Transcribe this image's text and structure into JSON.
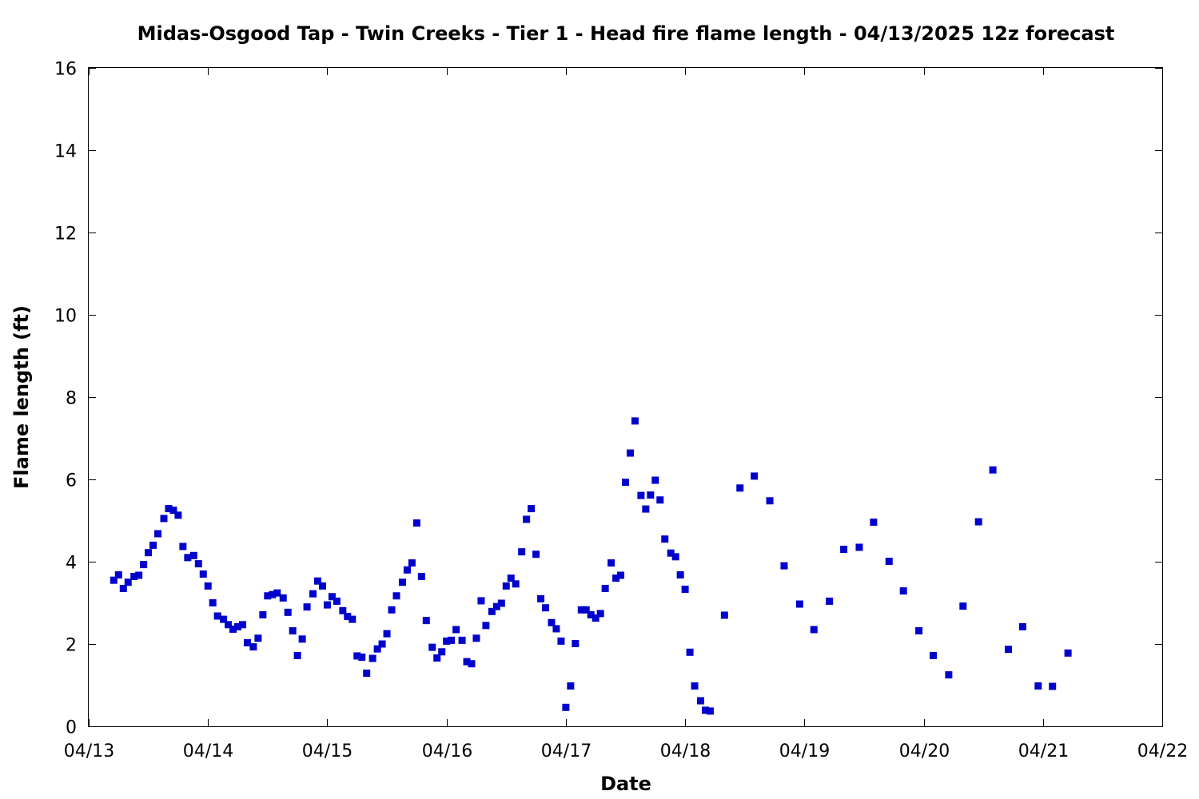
{
  "chart_data": {
    "type": "scatter",
    "title": "Midas-Osgood Tap - Twin Creeks - Tier 1 - Head fire flame length - 04/13/2025 12z forecast",
    "xlabel": "Date",
    "ylabel": "Flame length (ft)",
    "x_ticks": [
      "04/13",
      "04/14",
      "04/15",
      "04/16",
      "04/17",
      "04/18",
      "04/19",
      "04/20",
      "04/21",
      "04/22"
    ],
    "y_ticks": [
      "0",
      "2",
      "4",
      "6",
      "8",
      "10",
      "12",
      "14",
      "16"
    ],
    "xlim": [
      "04/13 00z",
      "04/22 00z"
    ],
    "ylim": [
      0,
      16
    ],
    "grid": false,
    "legend": "none",
    "marker": "square",
    "colors": {
      "points": "#0000cc",
      "frame": "#000000",
      "background": "#ffffff"
    },
    "series": [
      {
        "x_unit": "days since 04/13 00z",
        "points": [
          [
            0.21,
            3.55
          ],
          [
            0.25,
            3.68
          ],
          [
            0.29,
            3.35
          ],
          [
            0.33,
            3.5
          ],
          [
            0.38,
            3.64
          ],
          [
            0.42,
            3.67
          ],
          [
            0.46,
            3.93
          ],
          [
            0.5,
            4.22
          ],
          [
            0.54,
            4.4
          ],
          [
            0.58,
            4.68
          ],
          [
            0.63,
            5.05
          ],
          [
            0.67,
            5.29
          ],
          [
            0.71,
            5.25
          ],
          [
            0.75,
            5.13
          ],
          [
            0.79,
            4.37
          ],
          [
            0.83,
            4.1
          ],
          [
            0.88,
            4.15
          ],
          [
            0.92,
            3.95
          ],
          [
            0.96,
            3.7
          ],
          [
            1.0,
            3.41
          ],
          [
            1.04,
            3.0
          ],
          [
            1.08,
            2.68
          ],
          [
            1.13,
            2.6
          ],
          [
            1.17,
            2.47
          ],
          [
            1.21,
            2.36
          ],
          [
            1.25,
            2.42
          ],
          [
            1.29,
            2.47
          ],
          [
            1.33,
            2.03
          ],
          [
            1.38,
            1.93
          ],
          [
            1.42,
            2.14
          ],
          [
            1.46,
            2.71
          ],
          [
            1.5,
            3.17
          ],
          [
            1.54,
            3.2
          ],
          [
            1.58,
            3.24
          ],
          [
            1.63,
            3.12
          ],
          [
            1.67,
            2.77
          ],
          [
            1.71,
            2.32
          ],
          [
            1.75,
            1.72
          ],
          [
            1.79,
            2.12
          ],
          [
            1.83,
            2.9
          ],
          [
            1.88,
            3.22
          ],
          [
            1.92,
            3.53
          ],
          [
            1.96,
            3.41
          ],
          [
            2.0,
            2.95
          ],
          [
            2.04,
            3.15
          ],
          [
            2.08,
            3.04
          ],
          [
            2.13,
            2.81
          ],
          [
            2.17,
            2.67
          ],
          [
            2.21,
            2.6
          ],
          [
            2.25,
            1.71
          ],
          [
            2.29,
            1.68
          ],
          [
            2.33,
            1.29
          ],
          [
            2.38,
            1.65
          ],
          [
            2.42,
            1.88
          ],
          [
            2.46,
            2.0
          ],
          [
            2.5,
            2.25
          ],
          [
            2.54,
            2.83
          ],
          [
            2.58,
            3.17
          ],
          [
            2.63,
            3.5
          ],
          [
            2.67,
            3.8
          ],
          [
            2.71,
            3.97
          ],
          [
            2.75,
            4.94
          ],
          [
            2.79,
            3.64
          ],
          [
            2.83,
            2.57
          ],
          [
            2.88,
            1.92
          ],
          [
            2.92,
            1.66
          ],
          [
            2.96,
            1.81
          ],
          [
            3.0,
            2.07
          ],
          [
            3.04,
            2.09
          ],
          [
            3.08,
            2.35
          ],
          [
            3.13,
            2.09
          ],
          [
            3.17,
            1.57
          ],
          [
            3.21,
            1.52
          ],
          [
            3.25,
            2.14
          ],
          [
            3.29,
            3.05
          ],
          [
            3.33,
            2.45
          ],
          [
            3.38,
            2.79
          ],
          [
            3.42,
            2.91
          ],
          [
            3.46,
            2.99
          ],
          [
            3.5,
            3.41
          ],
          [
            3.54,
            3.6
          ],
          [
            3.58,
            3.46
          ],
          [
            3.63,
            4.24
          ],
          [
            3.67,
            5.03
          ],
          [
            3.71,
            5.29
          ],
          [
            3.75,
            4.18
          ],
          [
            3.79,
            3.1
          ],
          [
            3.83,
            2.88
          ],
          [
            3.88,
            2.52
          ],
          [
            3.92,
            2.37
          ],
          [
            3.96,
            2.07
          ],
          [
            4.0,
            0.46
          ],
          [
            4.04,
            0.98
          ],
          [
            4.08,
            2.01
          ],
          [
            4.13,
            2.83
          ],
          [
            4.17,
            2.83
          ],
          [
            4.21,
            2.71
          ],
          [
            4.25,
            2.63
          ],
          [
            4.29,
            2.74
          ],
          [
            4.33,
            3.35
          ],
          [
            4.38,
            3.97
          ],
          [
            4.42,
            3.6
          ],
          [
            4.46,
            3.67
          ],
          [
            4.5,
            5.93
          ],
          [
            4.54,
            6.64
          ],
          [
            4.58,
            7.42
          ],
          [
            4.63,
            5.61
          ],
          [
            4.67,
            5.28
          ],
          [
            4.71,
            5.62
          ],
          [
            4.75,
            5.98
          ],
          [
            4.79,
            5.5
          ],
          [
            4.83,
            4.55
          ],
          [
            4.88,
            4.21
          ],
          [
            4.92,
            4.12
          ],
          [
            4.96,
            3.68
          ],
          [
            5.0,
            3.33
          ],
          [
            5.04,
            1.8
          ],
          [
            5.08,
            0.98
          ],
          [
            5.13,
            0.62
          ],
          [
            5.17,
            0.39
          ],
          [
            5.21,
            0.37
          ],
          [
            5.33,
            2.7
          ],
          [
            5.46,
            5.79
          ],
          [
            5.58,
            6.08
          ],
          [
            5.71,
            5.48
          ],
          [
            5.83,
            3.9
          ],
          [
            5.96,
            2.97
          ],
          [
            6.08,
            2.35
          ],
          [
            6.21,
            3.04
          ],
          [
            6.33,
            4.3
          ],
          [
            6.46,
            4.35
          ],
          [
            6.58,
            4.96
          ],
          [
            6.71,
            4.01
          ],
          [
            6.83,
            3.29
          ],
          [
            6.96,
            2.32
          ],
          [
            7.08,
            1.72
          ],
          [
            7.21,
            1.25
          ],
          [
            7.33,
            2.92
          ],
          [
            7.46,
            4.97
          ],
          [
            7.58,
            6.23
          ],
          [
            7.71,
            1.87
          ],
          [
            7.83,
            2.42
          ],
          [
            7.96,
            0.98
          ],
          [
            8.08,
            0.97
          ],
          [
            8.21,
            1.78
          ]
        ]
      }
    ]
  }
}
